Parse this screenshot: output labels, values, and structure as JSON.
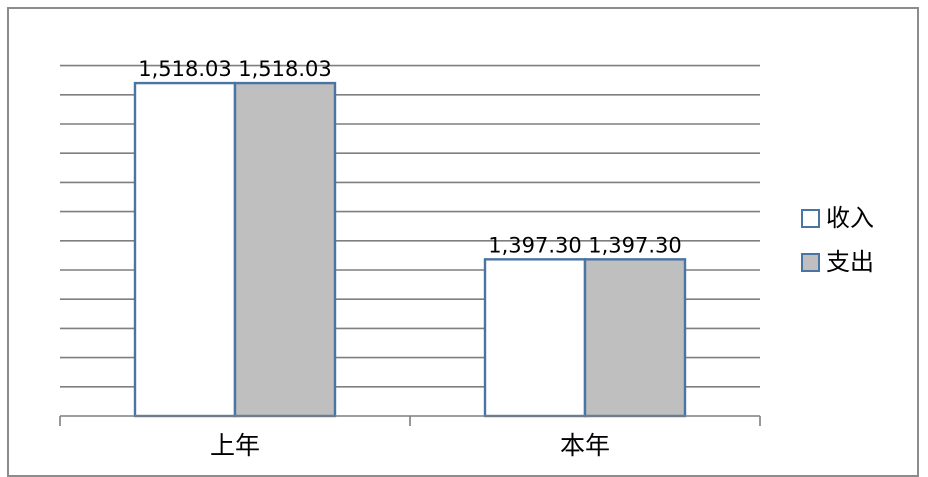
{
  "chart_data": {
    "type": "bar",
    "categories": [
      "上年",
      "本年"
    ],
    "series": [
      {
        "name": "收入",
        "values": [
          1518.03,
          1397.3
        ],
        "labels": [
          "1,518.03",
          "1,397.30"
        ],
        "color": "#ffffff"
      },
      {
        "name": "支出",
        "values": [
          1518.03,
          1397.3
        ],
        "labels": [
          "1,518.03",
          "1,397.30"
        ],
        "color": "#bfbfbf"
      }
    ],
    "ylim": [
      1290,
      1540
    ],
    "y_tick_step": 20,
    "grid": true,
    "legend_position": "right",
    "bar_border_color": "#4a74a4",
    "grid_color": "#7f7f7f"
  }
}
